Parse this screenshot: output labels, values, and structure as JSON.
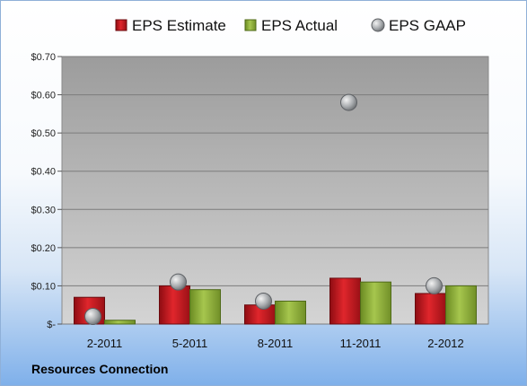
{
  "footer": {
    "company": "Resources Connection"
  },
  "chart_data": {
    "type": "bar",
    "categories": [
      "2-2011",
      "5-2011",
      "8-2011",
      "11-2011",
      "2-2012"
    ],
    "series": [
      {
        "name": "EPS Estimate",
        "type": "bar",
        "color": "#c0141c",
        "values": [
          0.07,
          0.1,
          0.05,
          0.12,
          0.08
        ]
      },
      {
        "name": "EPS Actual",
        "type": "bar",
        "color": "#8fb03c",
        "values": [
          0.01,
          0.09,
          0.06,
          0.11,
          0.1
        ]
      },
      {
        "name": "EPS GAAP",
        "type": "scatter",
        "color": "#a0a4a8",
        "values": [
          0.02,
          0.11,
          0.06,
          0.58,
          0.1
        ]
      }
    ],
    "y_ticks": [
      {
        "value": 0.0,
        "label": "$-"
      },
      {
        "value": 0.1,
        "label": "$0.10"
      },
      {
        "value": 0.2,
        "label": "$0.20"
      },
      {
        "value": 0.3,
        "label": "$0.30"
      },
      {
        "value": 0.4,
        "label": "$0.40"
      },
      {
        "value": 0.5,
        "label": "$0.50"
      },
      {
        "value": 0.6,
        "label": "$0.60"
      },
      {
        "value": 0.7,
        "label": "$0.70"
      }
    ],
    "ylim": [
      0,
      0.7
    ],
    "grid": true,
    "legend": "top"
  }
}
